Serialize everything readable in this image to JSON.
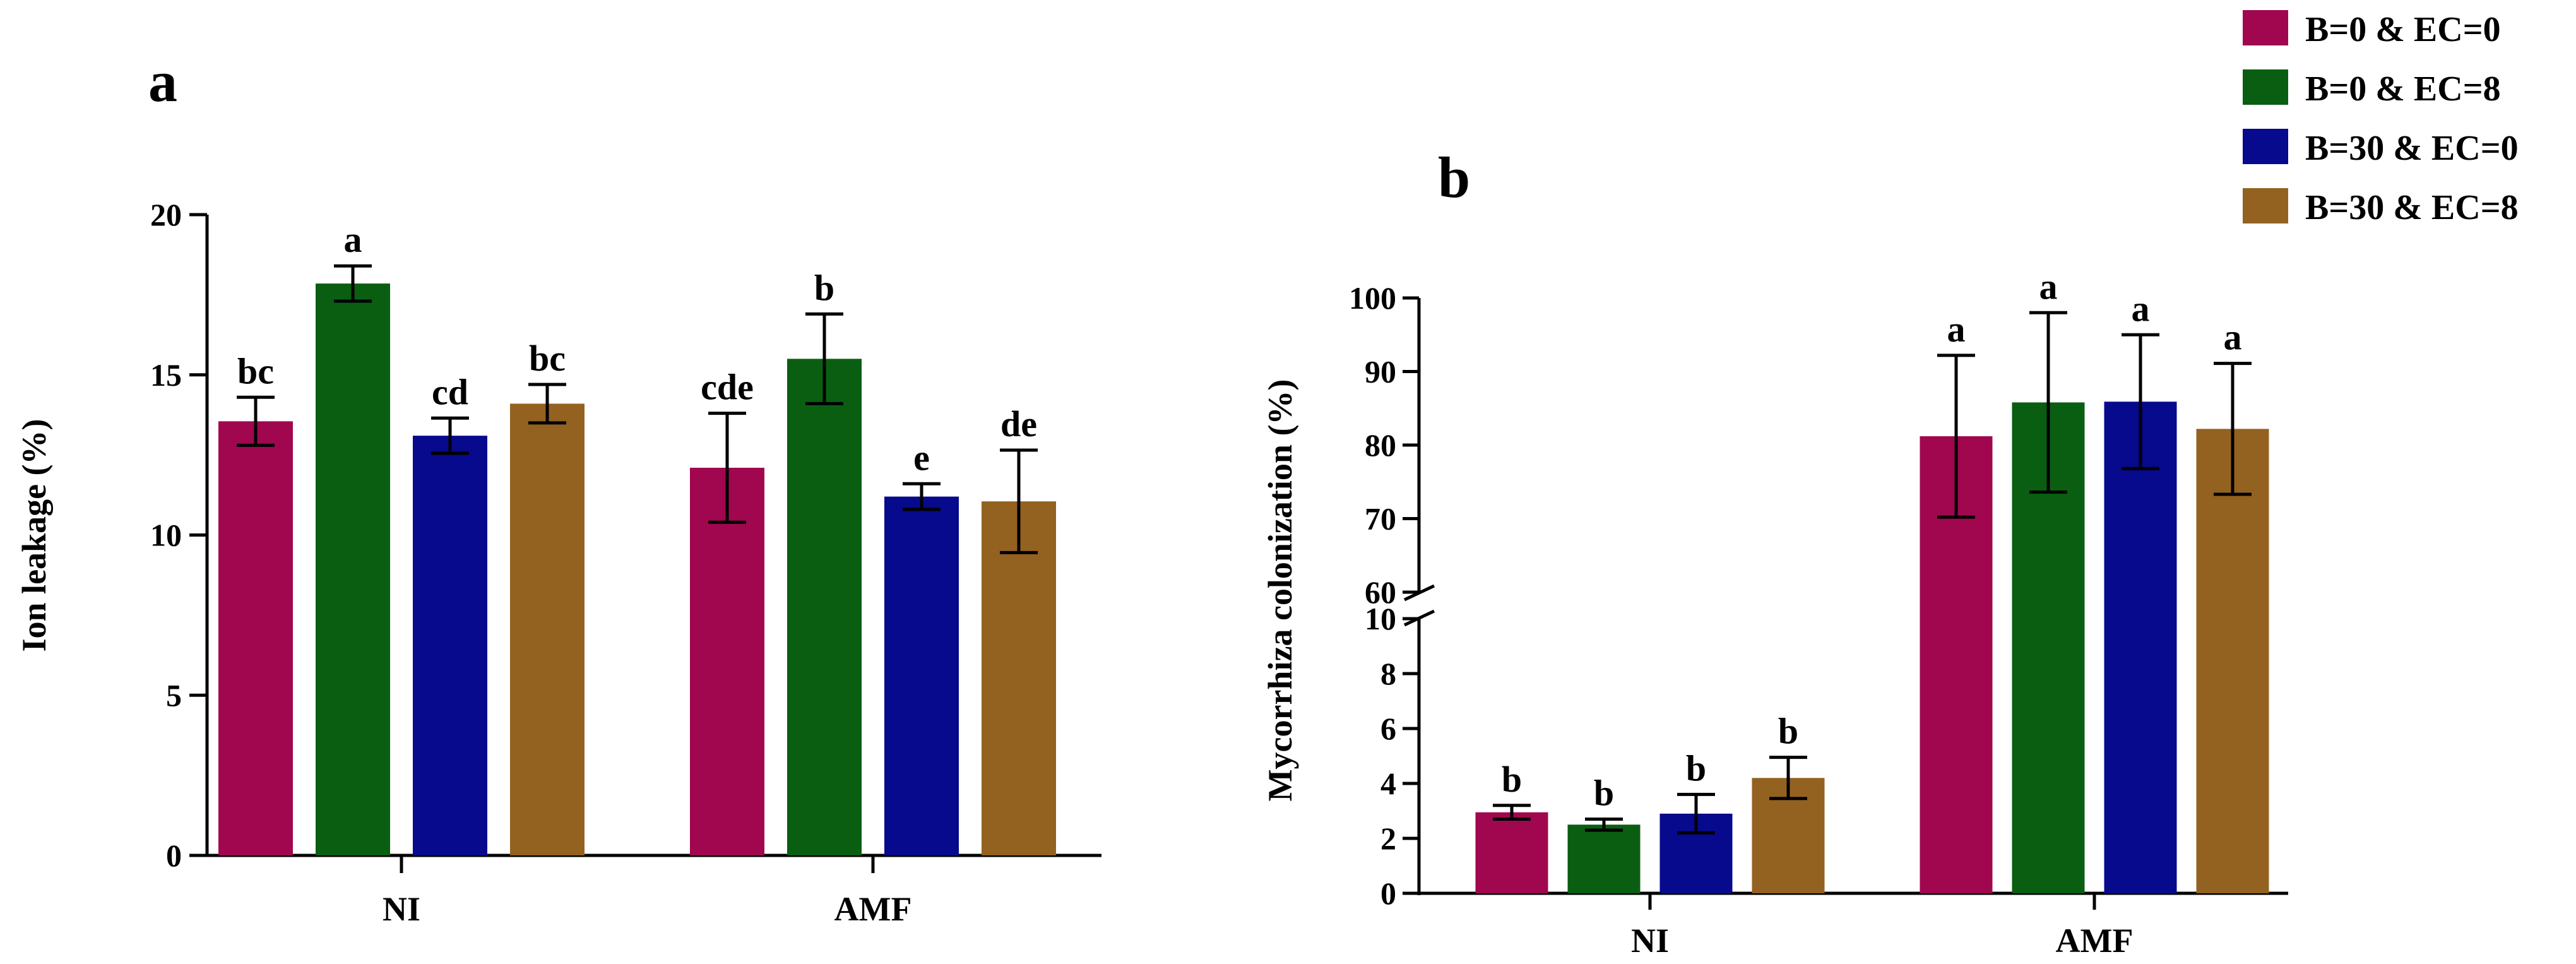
{
  "colors": {
    "series": [
      "#A0074F",
      "#0A5E12",
      "#070A8C",
      "#936220"
    ]
  },
  "legend": {
    "entries": [
      "B=0 & EC=0",
      "B=0 & EC=8",
      "B=30 & EC=0",
      "B=30 & EC=8"
    ]
  },
  "chart_data": [
    {
      "type": "bar",
      "panel": "a",
      "title": "",
      "xlabel": "",
      "ylabel": "Ion leakage (%)",
      "ylim": [
        0,
        20
      ],
      "yticks": [
        0,
        5,
        10,
        15,
        20
      ],
      "categories": [
        "NI",
        "AMF"
      ],
      "series": [
        {
          "name": "B=0 & EC=0",
          "values": [
            13.55,
            12.1
          ],
          "errors": [
            0.75,
            1.7
          ],
          "letters": [
            "bc",
            "cde"
          ]
        },
        {
          "name": "B=0 & EC=8",
          "values": [
            17.85,
            15.5
          ],
          "errors": [
            0.55,
            1.4
          ],
          "letters": [
            "a",
            "b"
          ]
        },
        {
          "name": "B=30 & EC=0",
          "values": [
            13.1,
            11.2
          ],
          "errors": [
            0.55,
            0.4
          ],
          "letters": [
            "cd",
            "e"
          ]
        },
        {
          "name": "B=30 & EC=8",
          "values": [
            14.1,
            11.05
          ],
          "errors": [
            0.6,
            1.6
          ],
          "letters": [
            "bc",
            "de"
          ]
        }
      ]
    },
    {
      "type": "bar",
      "panel": "b",
      "title": "",
      "xlabel": "",
      "ylabel": "Mycorrhiza colonization (%)",
      "axis_break": {
        "lower": [
          0,
          10
        ],
        "upper": [
          60,
          100
        ]
      },
      "yticks_lower": [
        0,
        2,
        4,
        6,
        8,
        10
      ],
      "yticks_upper": [
        60,
        70,
        80,
        90,
        100
      ],
      "categories": [
        "NI",
        "AMF"
      ],
      "series": [
        {
          "name": "B=0 & EC=0",
          "values": [
            2.95,
            81.2
          ],
          "errors": [
            0.25,
            11.0
          ],
          "letters": [
            "b",
            "a"
          ]
        },
        {
          "name": "B=0 & EC=8",
          "values": [
            2.5,
            85.8
          ],
          "errors": [
            0.2,
            12.2
          ],
          "letters": [
            "b",
            "a"
          ]
        },
        {
          "name": "B=30 & EC=0",
          "values": [
            2.9,
            85.9
          ],
          "errors": [
            0.7,
            9.1
          ],
          "letters": [
            "b",
            "a"
          ]
        },
        {
          "name": "B=30 & EC=8",
          "values": [
            4.2,
            82.2
          ],
          "errors": [
            0.75,
            8.9
          ],
          "letters": [
            "b",
            "a"
          ]
        }
      ]
    }
  ]
}
